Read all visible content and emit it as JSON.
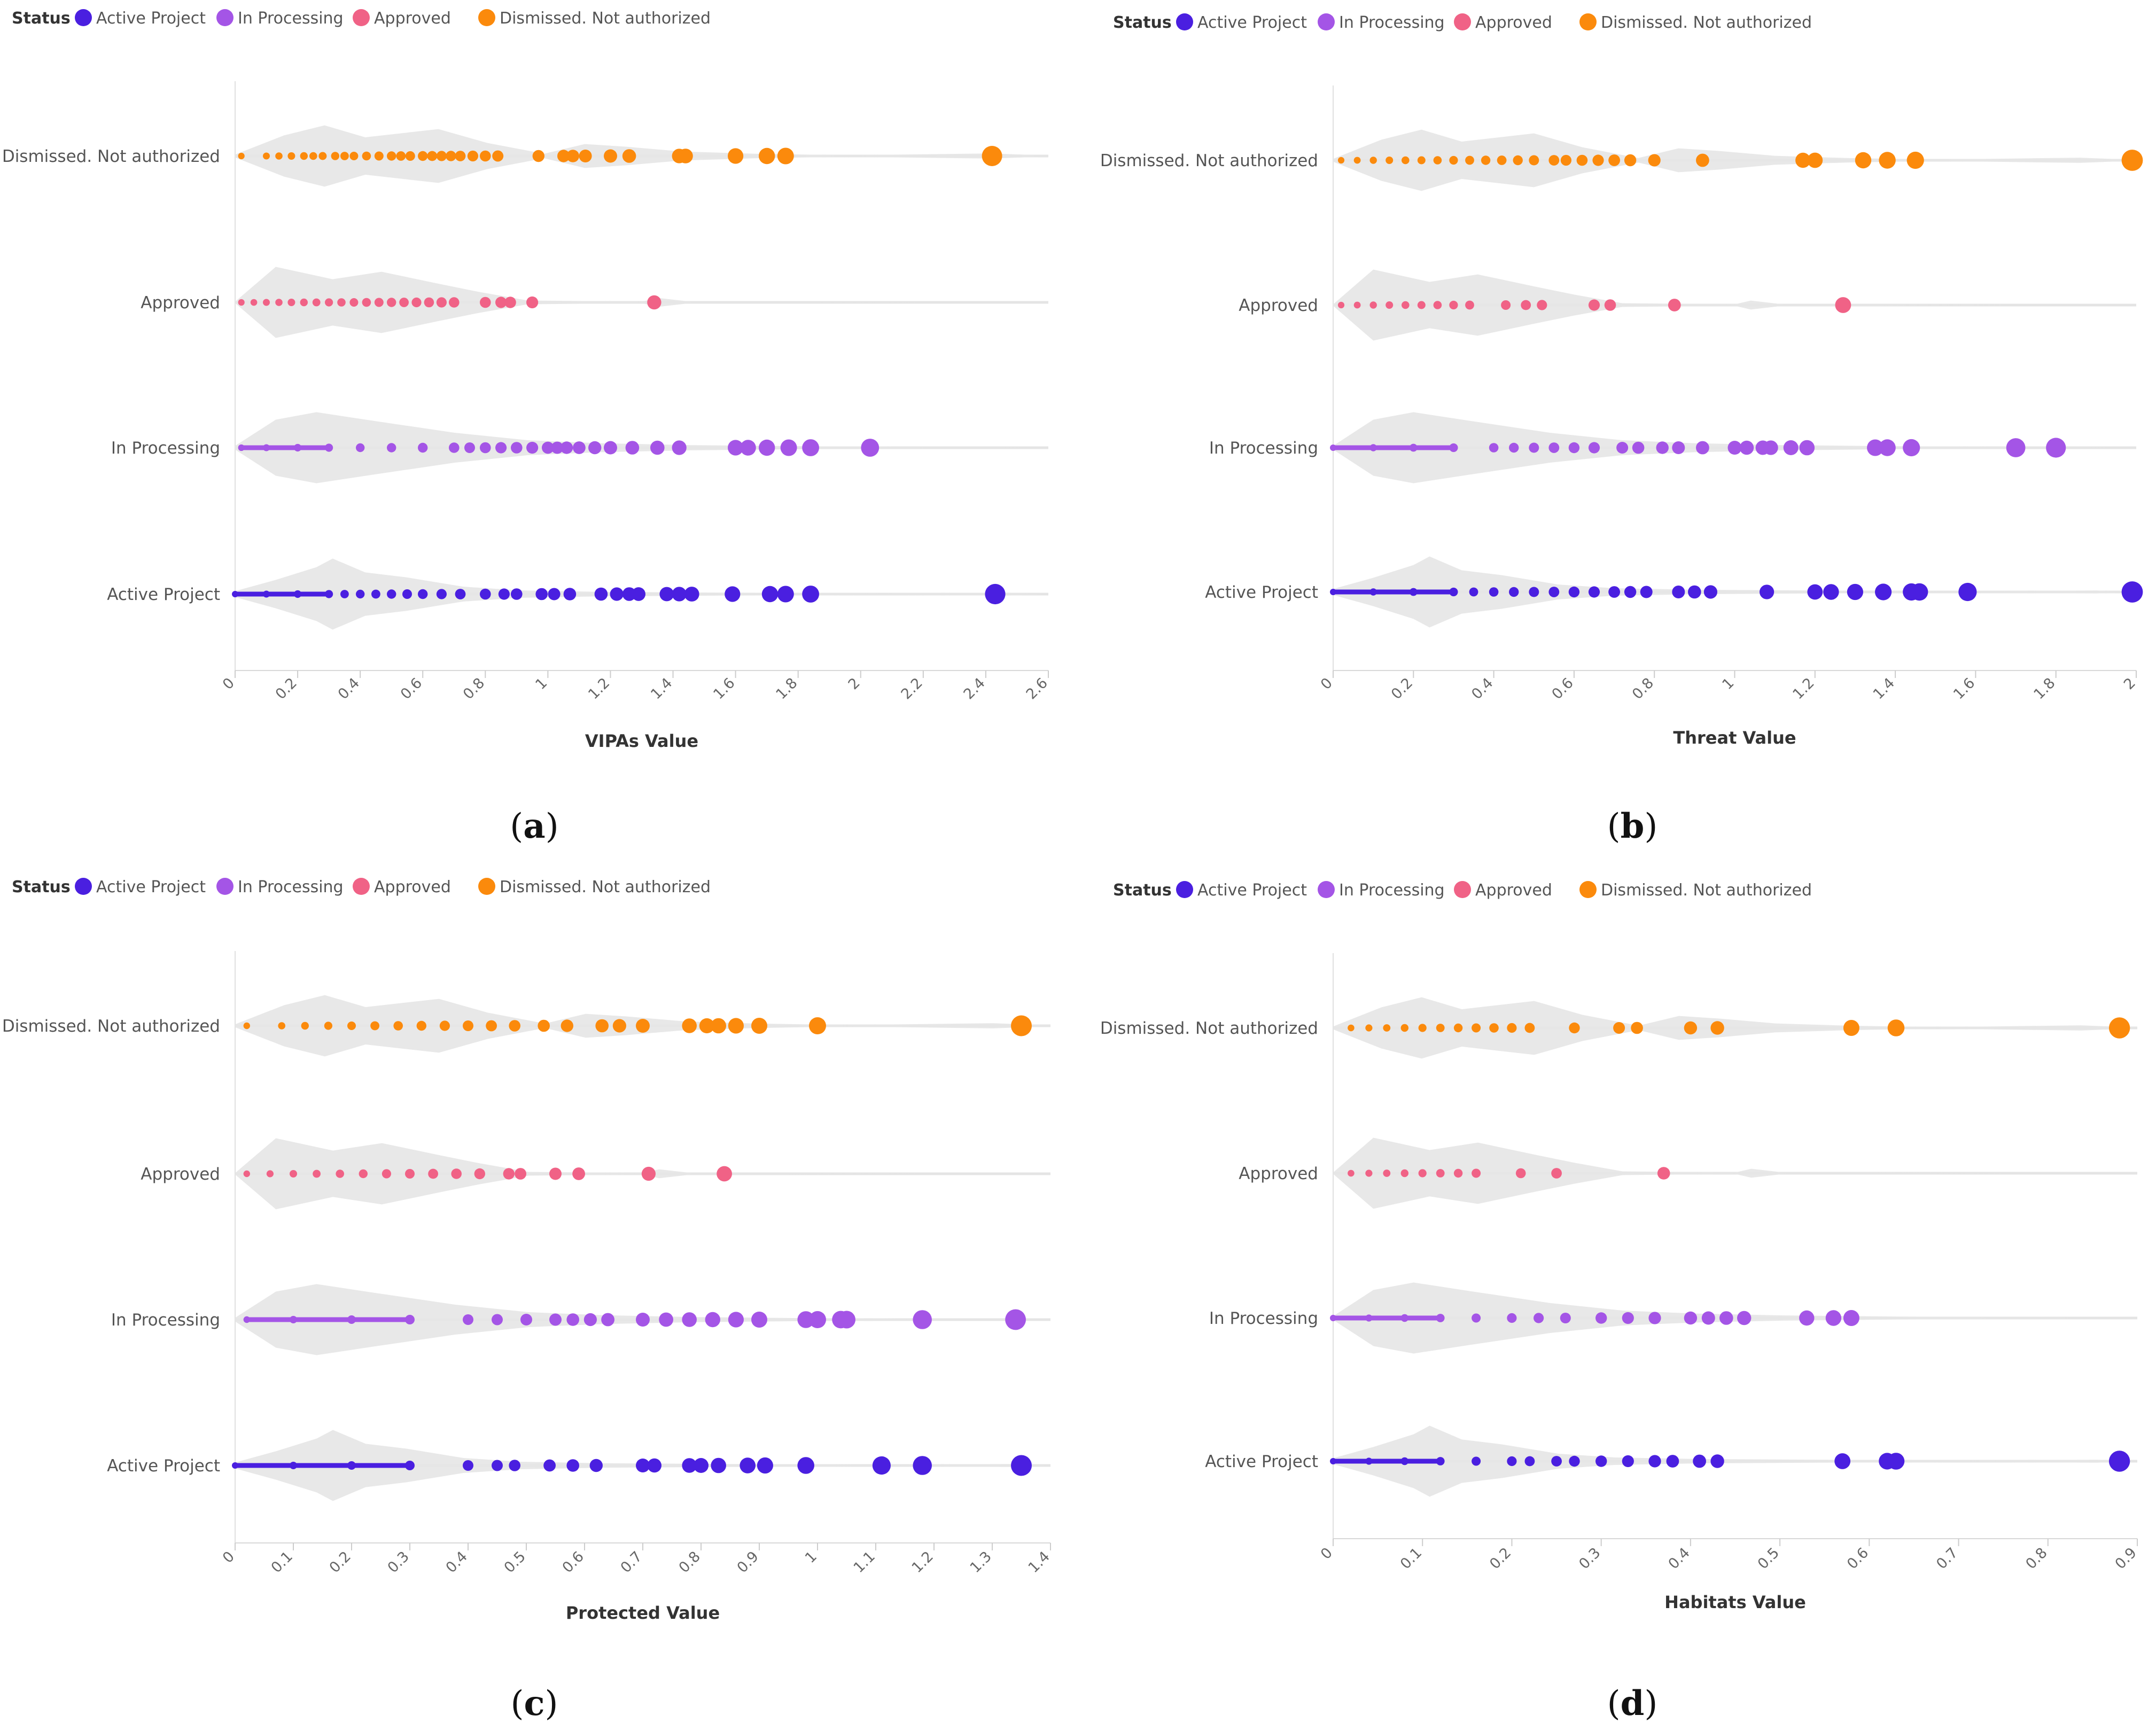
{
  "figure": {
    "panels": [
      {
        "letter_open": "(",
        "letter": "a",
        "letter_close": ")"
      },
      {
        "letter_open": "(",
        "letter": "b",
        "letter_close": ")"
      },
      {
        "letter_open": "(",
        "letter": "c",
        "letter_close": ")"
      },
      {
        "letter_open": "(",
        "letter": "d",
        "letter_close": ")"
      }
    ]
  },
  "colors": {
    "Active Project": "#4a1fe0",
    "In Processing": "#a455e6",
    "Approved": "#f06286",
    "Dismissed. Not authorized": "#fb8a0c",
    "violin": "#e6e6e6",
    "grid": "#e4e4e4"
  },
  "chart_data": [
    {
      "type": "scatter",
      "subtype": "violin-strip",
      "xlabel": "VIPAs Value",
      "legend_title": "Status",
      "legend": [
        "Active Project",
        "In Processing",
        "Approved",
        "Dismissed. Not authorized"
      ],
      "categories": [
        "Dismissed. Not authorized",
        "Approved",
        "In Processing",
        "Active Project"
      ],
      "xlim": [
        0,
        2.6
      ],
      "xticks": [
        "0",
        "0.2",
        "0.4",
        "0.6",
        "0.8",
        "1",
        "1.2",
        "1.4",
        "1.6",
        "1.8",
        "2",
        "2.2",
        "2.4",
        "2.6"
      ],
      "series": [
        {
          "name": "Dismissed. Not authorized",
          "values": [
            0.02,
            0.1,
            0.14,
            0.18,
            0.22,
            0.25,
            0.28,
            0.32,
            0.35,
            0.38,
            0.42,
            0.46,
            0.5,
            0.53,
            0.56,
            0.6,
            0.63,
            0.66,
            0.69,
            0.72,
            0.76,
            0.8,
            0.84,
            0.97,
            1.05,
            1.08,
            1.12,
            1.2,
            1.26,
            1.42,
            1.44,
            1.6,
            1.7,
            1.76,
            2.42
          ]
        },
        {
          "name": "Approved",
          "values": [
            0.02,
            0.06,
            0.1,
            0.14,
            0.18,
            0.22,
            0.26,
            0.3,
            0.34,
            0.38,
            0.42,
            0.46,
            0.5,
            0.54,
            0.58,
            0.62,
            0.66,
            0.7,
            0.8,
            0.85,
            0.88,
            0.95,
            1.34
          ]
        },
        {
          "name": "In Processing",
          "values": [
            0.02,
            0.1,
            0.2,
            0.3,
            0.4,
            0.5,
            0.6,
            0.7,
            0.75,
            0.8,
            0.85,
            0.9,
            0.95,
            1.0,
            1.03,
            1.06,
            1.1,
            1.15,
            1.2,
            1.27,
            1.35,
            1.42,
            1.6,
            1.64,
            1.7,
            1.77,
            1.84,
            2.03
          ]
        },
        {
          "name": "Active Project",
          "values": [
            0.0,
            0.1,
            0.2,
            0.3,
            0.35,
            0.4,
            0.45,
            0.5,
            0.55,
            0.6,
            0.66,
            0.72,
            0.8,
            0.86,
            0.9,
            0.98,
            1.02,
            1.07,
            1.17,
            1.22,
            1.26,
            1.29,
            1.38,
            1.42,
            1.46,
            1.59,
            1.71,
            1.76,
            1.84,
            2.43
          ]
        }
      ]
    },
    {
      "type": "scatter",
      "subtype": "violin-strip",
      "xlabel": "Threat Value",
      "legend_title": "Status",
      "legend": [
        "Active Project",
        "In Processing",
        "Approved",
        "Dismissed. Not authorized"
      ],
      "categories": [
        "Dismissed. Not authorized",
        "Approved",
        "In Processing",
        "Active Project"
      ],
      "xlim": [
        0,
        2
      ],
      "xticks": [
        "0",
        "0.2",
        "0.4",
        "0.6",
        "0.8",
        "1",
        "1.2",
        "1.4",
        "1.6",
        "1.8",
        "2"
      ],
      "series": [
        {
          "name": "Dismissed. Not authorized",
          "values": [
            0.02,
            0.06,
            0.1,
            0.14,
            0.18,
            0.22,
            0.26,
            0.3,
            0.34,
            0.38,
            0.42,
            0.46,
            0.5,
            0.55,
            0.58,
            0.62,
            0.66,
            0.7,
            0.74,
            0.8,
            0.92,
            1.17,
            1.2,
            1.32,
            1.38,
            1.45,
            1.99
          ]
        },
        {
          "name": "Approved",
          "values": [
            0.02,
            0.06,
            0.1,
            0.14,
            0.18,
            0.22,
            0.26,
            0.3,
            0.34,
            0.43,
            0.48,
            0.52,
            0.65,
            0.69,
            0.85,
            1.27
          ]
        },
        {
          "name": "In Processing",
          "values": [
            0.0,
            0.1,
            0.2,
            0.3,
            0.4,
            0.45,
            0.5,
            0.55,
            0.6,
            0.65,
            0.72,
            0.76,
            0.82,
            0.86,
            0.92,
            1.0,
            1.03,
            1.07,
            1.09,
            1.14,
            1.18,
            1.35,
            1.38,
            1.44,
            1.7,
            1.8
          ]
        },
        {
          "name": "Active Project",
          "values": [
            0.0,
            0.1,
            0.2,
            0.3,
            0.35,
            0.4,
            0.45,
            0.5,
            0.55,
            0.6,
            0.65,
            0.7,
            0.74,
            0.78,
            0.86,
            0.9,
            0.94,
            1.08,
            1.2,
            1.24,
            1.3,
            1.37,
            1.44,
            1.46,
            1.58,
            1.99
          ]
        }
      ]
    },
    {
      "type": "scatter",
      "subtype": "violin-strip",
      "xlabel": "Protected Value",
      "legend_title": "Status",
      "legend": [
        "Active Project",
        "In Processing",
        "Approved",
        "Dismissed. Not authorized"
      ],
      "categories": [
        "Dismissed. Not authorized",
        "Approved",
        "In Processing",
        "Active Project"
      ],
      "xlim": [
        0,
        1.4
      ],
      "xticks": [
        "0",
        "0.1",
        "0.2",
        "0.3",
        "0.4",
        "0.5",
        "0.6",
        "0.7",
        "0.8",
        "0.9",
        "1",
        "1.1",
        "1.2",
        "1.3",
        "1.4"
      ],
      "series": [
        {
          "name": "Dismissed. Not authorized",
          "values": [
            0.02,
            0.08,
            0.12,
            0.16,
            0.2,
            0.24,
            0.28,
            0.32,
            0.36,
            0.4,
            0.44,
            0.48,
            0.53,
            0.57,
            0.63,
            0.66,
            0.7,
            0.78,
            0.81,
            0.83,
            0.86,
            0.9,
            1.0,
            1.35
          ]
        },
        {
          "name": "Approved",
          "values": [
            0.02,
            0.06,
            0.1,
            0.14,
            0.18,
            0.22,
            0.26,
            0.3,
            0.34,
            0.38,
            0.42,
            0.47,
            0.49,
            0.55,
            0.59,
            0.71,
            0.84
          ]
        },
        {
          "name": "In Processing",
          "values": [
            0.02,
            0.1,
            0.2,
            0.3,
            0.4,
            0.45,
            0.5,
            0.55,
            0.58,
            0.61,
            0.64,
            0.7,
            0.74,
            0.78,
            0.82,
            0.86,
            0.9,
            0.98,
            1.0,
            1.04,
            1.05,
            1.18,
            1.34
          ]
        },
        {
          "name": "Active Project",
          "values": [
            0.0,
            0.1,
            0.2,
            0.3,
            0.4,
            0.45,
            0.48,
            0.54,
            0.58,
            0.62,
            0.7,
            0.72,
            0.78,
            0.8,
            0.83,
            0.88,
            0.91,
            0.98,
            1.11,
            1.18,
            1.35
          ]
        }
      ]
    },
    {
      "type": "scatter",
      "subtype": "violin-strip",
      "xlabel": "Habitats Value",
      "legend_title": "Status",
      "legend": [
        "Active Project",
        "In Processing",
        "Approved",
        "Dismissed. Not authorized"
      ],
      "categories": [
        "Dismissed. Not authorized",
        "Approved",
        "In Processing",
        "Active Project"
      ],
      "xlim": [
        0,
        0.9
      ],
      "xticks": [
        "0",
        "0.1",
        "0.2",
        "0.3",
        "0.4",
        "0.5",
        "0.6",
        "0.7",
        "0.8",
        "0.9"
      ],
      "series": [
        {
          "name": "Dismissed. Not authorized",
          "values": [
            0.02,
            0.04,
            0.06,
            0.08,
            0.1,
            0.12,
            0.14,
            0.16,
            0.18,
            0.2,
            0.22,
            0.27,
            0.32,
            0.34,
            0.4,
            0.43,
            0.58,
            0.63,
            0.88
          ]
        },
        {
          "name": "Approved",
          "values": [
            0.02,
            0.04,
            0.06,
            0.08,
            0.1,
            0.12,
            0.14,
            0.16,
            0.21,
            0.25,
            0.37
          ]
        },
        {
          "name": "In Processing",
          "values": [
            0.0,
            0.04,
            0.08,
            0.12,
            0.16,
            0.2,
            0.23,
            0.26,
            0.3,
            0.33,
            0.36,
            0.4,
            0.42,
            0.44,
            0.46,
            0.53,
            0.56,
            0.58
          ]
        },
        {
          "name": "Active Project",
          "values": [
            0.0,
            0.04,
            0.08,
            0.12,
            0.16,
            0.2,
            0.22,
            0.25,
            0.27,
            0.3,
            0.33,
            0.36,
            0.38,
            0.41,
            0.43,
            0.57,
            0.62,
            0.63,
            0.88
          ]
        }
      ]
    }
  ]
}
